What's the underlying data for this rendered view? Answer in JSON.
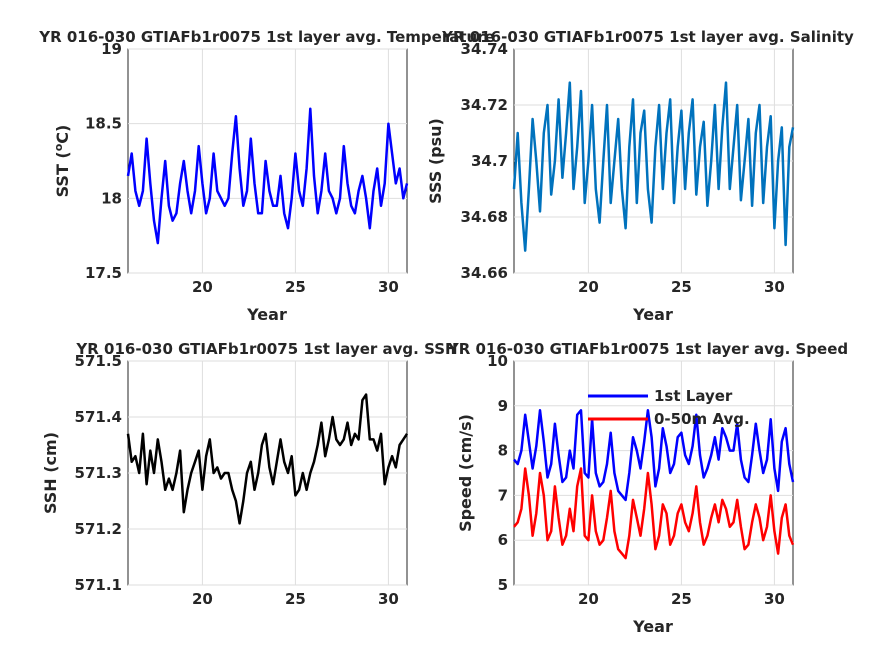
{
  "chart_data": [
    {
      "type": "line",
      "title": "YR 016-030 GTIAFb1r0075 1st layer avg. Temperature",
      "xlabel": "Year",
      "ylabel": "SST (°C)",
      "ylabel_main": "SST (",
      "ylabel_sup": "o",
      "ylabel_tail": "C)",
      "xlim": [
        16,
        31
      ],
      "ylim": [
        17.5,
        19
      ],
      "xticks": [
        "20",
        "25",
        "30"
      ],
      "yticks": [
        "17.5",
        "18",
        "18.5",
        "19"
      ],
      "grid": true,
      "series": [
        {
          "color": "#0000ff",
          "x": [
            16.0,
            16.2,
            16.4,
            16.6,
            16.8,
            17.0,
            17.2,
            17.4,
            17.6,
            17.8,
            18.0,
            18.2,
            18.4,
            18.6,
            18.8,
            19.0,
            19.2,
            19.4,
            19.6,
            19.8,
            20.0,
            20.2,
            20.4,
            20.6,
            20.8,
            21.0,
            21.2,
            21.4,
            21.6,
            21.8,
            22.0,
            22.2,
            22.4,
            22.6,
            22.8,
            23.0,
            23.2,
            23.4,
            23.6,
            23.8,
            24.0,
            24.2,
            24.4,
            24.6,
            24.8,
            25.0,
            25.2,
            25.4,
            25.6,
            25.8,
            26.0,
            26.2,
            26.4,
            26.6,
            26.8,
            27.0,
            27.2,
            27.4,
            27.6,
            27.8,
            28.0,
            28.2,
            28.4,
            28.6,
            28.8,
            29.0,
            29.2,
            29.4,
            29.6,
            29.8,
            30.0,
            30.2,
            30.4,
            30.6,
            30.8,
            31.0
          ],
          "y": [
            18.15,
            18.3,
            18.05,
            17.95,
            18.05,
            18.4,
            18.1,
            17.85,
            17.7,
            18.0,
            18.25,
            17.95,
            17.85,
            17.9,
            18.1,
            18.25,
            18.05,
            17.9,
            18.05,
            18.35,
            18.1,
            17.9,
            18.0,
            18.3,
            18.05,
            18.0,
            17.95,
            18.0,
            18.3,
            18.55,
            18.2,
            17.95,
            18.05,
            18.4,
            18.1,
            17.9,
            17.9,
            18.25,
            18.05,
            17.95,
            17.95,
            18.15,
            17.9,
            17.8,
            18.0,
            18.3,
            18.05,
            17.95,
            18.2,
            18.6,
            18.15,
            17.9,
            18.05,
            18.3,
            18.05,
            18.0,
            17.9,
            18.0,
            18.35,
            18.1,
            17.95,
            17.9,
            18.05,
            18.15,
            18.0,
            17.8,
            18.05,
            18.2,
            17.95,
            18.1,
            18.5,
            18.3,
            18.1,
            18.2,
            18.0,
            18.1
          ]
        }
      ]
    },
    {
      "type": "line",
      "title": "YR 016-030 GTIAFb1r0075 1st layer avg. Salinity",
      "xlabel": "Year",
      "ylabel": "SSS (psu)",
      "xlim": [
        16,
        31
      ],
      "ylim": [
        34.66,
        34.74
      ],
      "xticks": [
        "20",
        "25",
        "30"
      ],
      "yticks": [
        "34.66",
        "34.68",
        "34.7",
        "34.72",
        "34.74"
      ],
      "grid": true,
      "series": [
        {
          "color": "#0072bd",
          "x": [
            16.0,
            16.2,
            16.4,
            16.6,
            16.8,
            17.0,
            17.2,
            17.4,
            17.6,
            17.8,
            18.0,
            18.2,
            18.4,
            18.6,
            18.8,
            19.0,
            19.2,
            19.4,
            19.6,
            19.8,
            20.0,
            20.2,
            20.4,
            20.6,
            20.8,
            21.0,
            21.2,
            21.4,
            21.6,
            21.8,
            22.0,
            22.2,
            22.4,
            22.6,
            22.8,
            23.0,
            23.2,
            23.4,
            23.6,
            23.8,
            24.0,
            24.2,
            24.4,
            24.6,
            24.8,
            25.0,
            25.2,
            25.4,
            25.6,
            25.8,
            26.0,
            26.2,
            26.4,
            26.6,
            26.8,
            27.0,
            27.2,
            27.4,
            27.6,
            27.8,
            28.0,
            28.2,
            28.4,
            28.6,
            28.8,
            29.0,
            29.2,
            29.4,
            29.6,
            29.8,
            30.0,
            30.2,
            30.4,
            30.6,
            30.8,
            31.0
          ],
          "y": [
            34.69,
            34.71,
            34.685,
            34.668,
            34.69,
            34.715,
            34.7,
            34.682,
            34.71,
            34.72,
            34.688,
            34.7,
            34.722,
            34.694,
            34.71,
            34.728,
            34.69,
            34.705,
            34.725,
            34.685,
            34.7,
            34.72,
            34.69,
            34.678,
            34.7,
            34.72,
            34.685,
            34.7,
            34.715,
            34.69,
            34.676,
            34.705,
            34.722,
            34.685,
            34.71,
            34.718,
            34.69,
            34.678,
            34.705,
            34.72,
            34.69,
            34.71,
            34.722,
            34.685,
            34.705,
            34.718,
            34.69,
            34.71,
            34.722,
            34.688,
            34.705,
            34.714,
            34.684,
            34.7,
            34.72,
            34.69,
            34.712,
            34.728,
            34.69,
            34.705,
            34.72,
            34.686,
            34.7,
            34.715,
            34.684,
            34.71,
            34.72,
            34.685,
            34.705,
            34.716,
            34.676,
            34.7,
            34.712,
            34.67,
            34.705,
            34.712
          ]
        }
      ]
    },
    {
      "type": "line",
      "title": "YR 016-030 GTIAFb1r0075 1st layer avg. SSH",
      "xlabel": "",
      "ylabel": "SSH (cm)",
      "xlim": [
        16,
        31
      ],
      "ylim": [
        571.1,
        571.5
      ],
      "xticks": [
        "20",
        "25",
        "30"
      ],
      "yticks": [
        "571.1",
        "571.2",
        "571.3",
        "571.4",
        "571.5"
      ],
      "grid": true,
      "series": [
        {
          "color": "#000000",
          "x": [
            16.0,
            16.2,
            16.4,
            16.6,
            16.8,
            17.0,
            17.2,
            17.4,
            17.6,
            17.8,
            18.0,
            18.2,
            18.4,
            18.6,
            18.8,
            19.0,
            19.2,
            19.4,
            19.6,
            19.8,
            20.0,
            20.2,
            20.4,
            20.6,
            20.8,
            21.0,
            21.2,
            21.4,
            21.6,
            21.8,
            22.0,
            22.2,
            22.4,
            22.6,
            22.8,
            23.0,
            23.2,
            23.4,
            23.6,
            23.8,
            24.0,
            24.2,
            24.4,
            24.6,
            24.8,
            25.0,
            25.2,
            25.4,
            25.6,
            25.8,
            26.0,
            26.2,
            26.4,
            26.6,
            26.8,
            27.0,
            27.2,
            27.4,
            27.6,
            27.8,
            28.0,
            28.2,
            28.4,
            28.6,
            28.8,
            29.0,
            29.2,
            29.4,
            29.6,
            29.8,
            30.0,
            30.2,
            30.4,
            30.6,
            30.8,
            31.0
          ],
          "y": [
            571.37,
            571.32,
            571.33,
            571.3,
            571.37,
            571.28,
            571.34,
            571.3,
            571.36,
            571.32,
            571.27,
            571.29,
            571.27,
            571.3,
            571.34,
            571.23,
            571.27,
            571.3,
            571.32,
            571.34,
            571.27,
            571.33,
            571.36,
            571.3,
            571.31,
            571.29,
            571.3,
            571.3,
            571.27,
            571.25,
            571.21,
            571.25,
            571.3,
            571.32,
            571.27,
            571.3,
            571.35,
            571.37,
            571.31,
            571.28,
            571.32,
            571.36,
            571.32,
            571.3,
            571.33,
            571.26,
            571.27,
            571.3,
            571.27,
            571.3,
            571.32,
            571.35,
            571.39,
            571.33,
            571.36,
            571.4,
            571.36,
            571.35,
            571.36,
            571.39,
            571.35,
            571.37,
            571.36,
            571.43,
            571.44,
            571.36,
            571.36,
            571.34,
            571.37,
            571.28,
            571.31,
            571.33,
            571.31,
            571.35,
            571.36,
            571.37
          ]
        }
      ]
    },
    {
      "type": "line",
      "title": "YR 016-030 GTIAFb1r0075 1st layer avg. Speed",
      "xlabel": "Year",
      "ylabel": "Speed (cm/s)",
      "xlim": [
        16,
        31
      ],
      "ylim": [
        5,
        10
      ],
      "xticks": [
        "20",
        "25",
        "30"
      ],
      "yticks": [
        "5",
        "6",
        "7",
        "8",
        "9",
        "10"
      ],
      "grid": true,
      "legend_position": "top-center",
      "series": [
        {
          "name": "1st Layer",
          "color": "#0000ff",
          "x": [
            16.0,
            16.2,
            16.4,
            16.6,
            16.8,
            17.0,
            17.2,
            17.4,
            17.6,
            17.8,
            18.0,
            18.2,
            18.4,
            18.6,
            18.8,
            19.0,
            19.2,
            19.4,
            19.6,
            19.8,
            20.0,
            20.2,
            20.4,
            20.6,
            20.8,
            21.0,
            21.2,
            21.4,
            21.6,
            21.8,
            22.0,
            22.2,
            22.4,
            22.6,
            22.8,
            23.0,
            23.2,
            23.4,
            23.6,
            23.8,
            24.0,
            24.2,
            24.4,
            24.6,
            24.8,
            25.0,
            25.2,
            25.4,
            25.6,
            25.8,
            26.0,
            26.2,
            26.4,
            26.6,
            26.8,
            27.0,
            27.2,
            27.4,
            27.6,
            27.8,
            28.0,
            28.2,
            28.4,
            28.6,
            28.8,
            29.0,
            29.2,
            29.4,
            29.6,
            29.8,
            30.0,
            30.2,
            30.4,
            30.6,
            30.8,
            31.0
          ],
          "y": [
            7.8,
            7.7,
            8.0,
            8.8,
            8.2,
            7.6,
            8.1,
            8.9,
            8.2,
            7.4,
            7.7,
            8.6,
            7.9,
            7.3,
            7.4,
            8.0,
            7.6,
            8.8,
            8.9,
            7.5,
            7.4,
            8.7,
            7.5,
            7.2,
            7.3,
            7.7,
            8.4,
            7.5,
            7.1,
            7.0,
            6.9,
            7.5,
            8.3,
            8.0,
            7.6,
            8.2,
            8.9,
            8.3,
            7.2,
            7.6,
            8.5,
            8.1,
            7.5,
            7.7,
            8.3,
            8.4,
            7.9,
            7.7,
            8.1,
            8.8,
            7.9,
            7.4,
            7.6,
            7.9,
            8.3,
            7.8,
            8.5,
            8.3,
            8.0,
            8.0,
            8.6,
            7.8,
            7.4,
            7.3,
            7.9,
            8.6,
            8.0,
            7.5,
            7.8,
            8.7,
            7.6,
            7.1,
            8.2,
            8.5,
            7.7,
            7.3
          ]
        },
        {
          "name": "0-50m Avg.",
          "color": "#ff0000",
          "x": [
            16.0,
            16.2,
            16.4,
            16.6,
            16.8,
            17.0,
            17.2,
            17.4,
            17.6,
            17.8,
            18.0,
            18.2,
            18.4,
            18.6,
            18.8,
            19.0,
            19.2,
            19.4,
            19.6,
            19.8,
            20.0,
            20.2,
            20.4,
            20.6,
            20.8,
            21.0,
            21.2,
            21.4,
            21.6,
            21.8,
            22.0,
            22.2,
            22.4,
            22.6,
            22.8,
            23.0,
            23.2,
            23.4,
            23.6,
            23.8,
            24.0,
            24.2,
            24.4,
            24.6,
            24.8,
            25.0,
            25.2,
            25.4,
            25.6,
            25.8,
            26.0,
            26.2,
            26.4,
            26.6,
            26.8,
            27.0,
            27.2,
            27.4,
            27.6,
            27.8,
            28.0,
            28.2,
            28.4,
            28.6,
            28.8,
            29.0,
            29.2,
            29.4,
            29.6,
            29.8,
            30.0,
            30.2,
            30.4,
            30.6,
            30.8,
            31.0
          ],
          "y": [
            6.3,
            6.4,
            6.7,
            7.6,
            7.0,
            6.1,
            6.6,
            7.5,
            7.0,
            6.0,
            6.2,
            7.2,
            6.5,
            5.9,
            6.1,
            6.7,
            6.2,
            7.2,
            7.6,
            6.1,
            6.0,
            7.0,
            6.2,
            5.9,
            6.0,
            6.5,
            7.1,
            6.2,
            5.8,
            5.7,
            5.6,
            6.1,
            6.9,
            6.5,
            6.1,
            6.7,
            7.5,
            6.8,
            5.8,
            6.1,
            6.8,
            6.6,
            5.9,
            6.1,
            6.6,
            6.8,
            6.4,
            6.2,
            6.6,
            7.2,
            6.4,
            5.9,
            6.1,
            6.5,
            6.8,
            6.4,
            6.9,
            6.7,
            6.3,
            6.4,
            6.9,
            6.3,
            5.8,
            5.9,
            6.4,
            6.8,
            6.5,
            6.0,
            6.3,
            7.0,
            6.2,
            5.7,
            6.5,
            6.8,
            6.1,
            5.9
          ]
        }
      ]
    }
  ]
}
